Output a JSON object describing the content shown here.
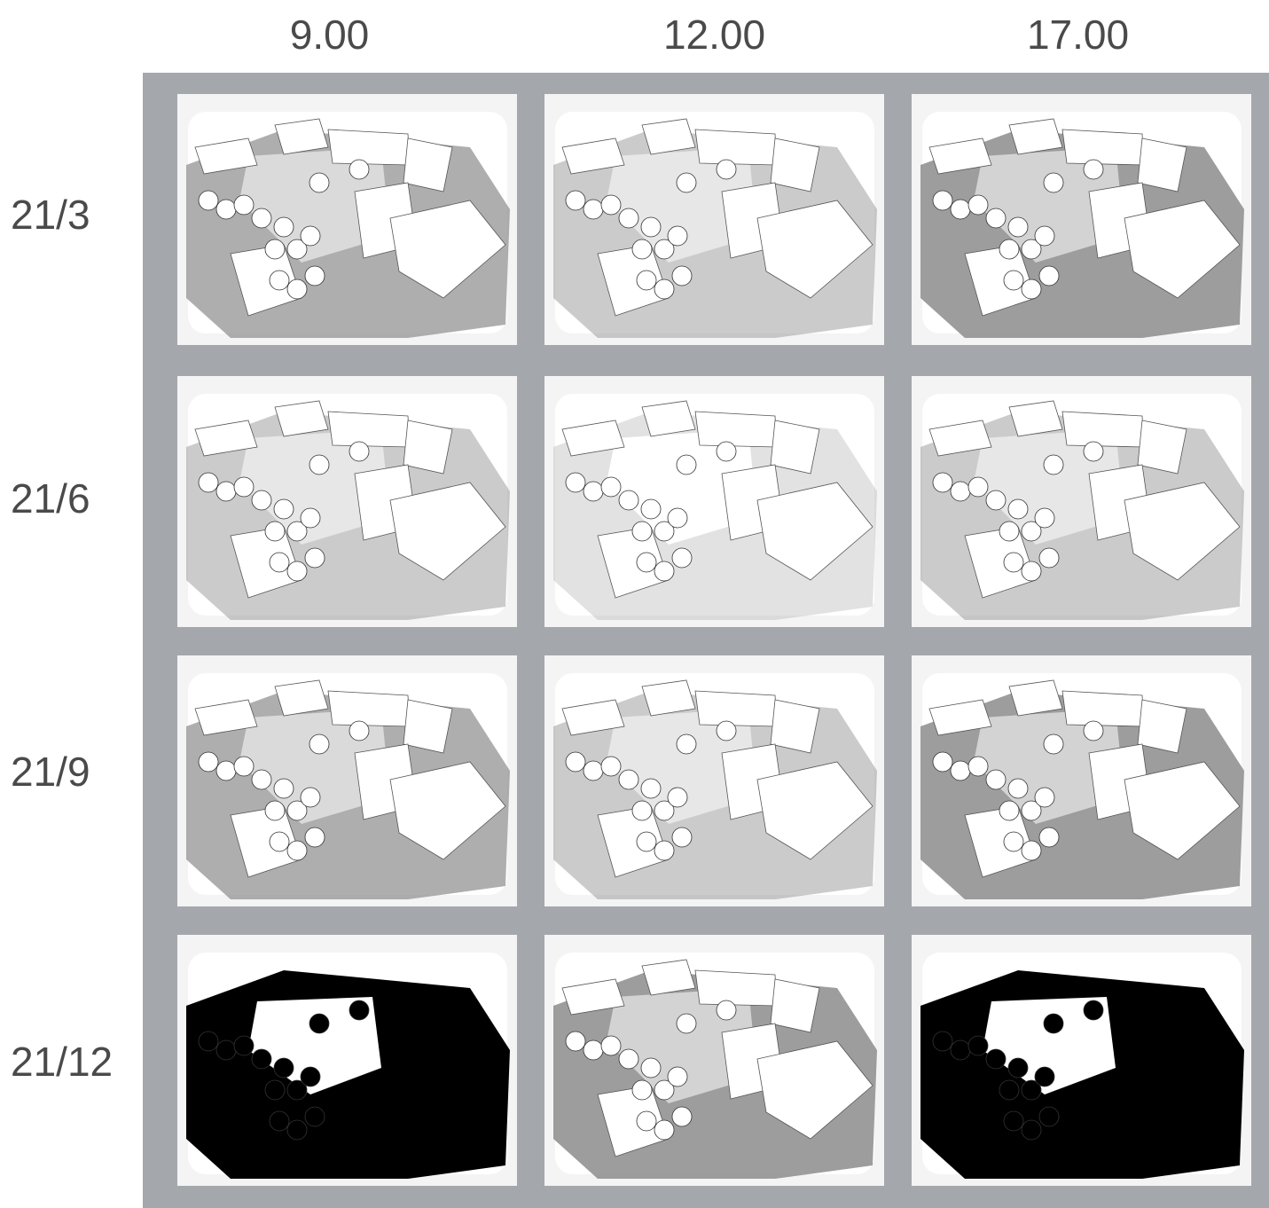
{
  "columns": [
    "9.00",
    "12.00",
    "17.00"
  ],
  "rows": [
    "21/3",
    "21/6",
    "21/9",
    "21/12"
  ],
  "colors": {
    "frame": "#a4a7ac",
    "shadow": "#8c8c8c",
    "dark_shadow": "#000000",
    "paper": "#ffffff"
  },
  "cells": [
    [
      "medium",
      "light",
      "heavy"
    ],
    [
      "light",
      "minimal",
      "light"
    ],
    [
      "medium",
      "light",
      "heavy"
    ],
    [
      "dark",
      "heavy",
      "dark"
    ]
  ]
}
